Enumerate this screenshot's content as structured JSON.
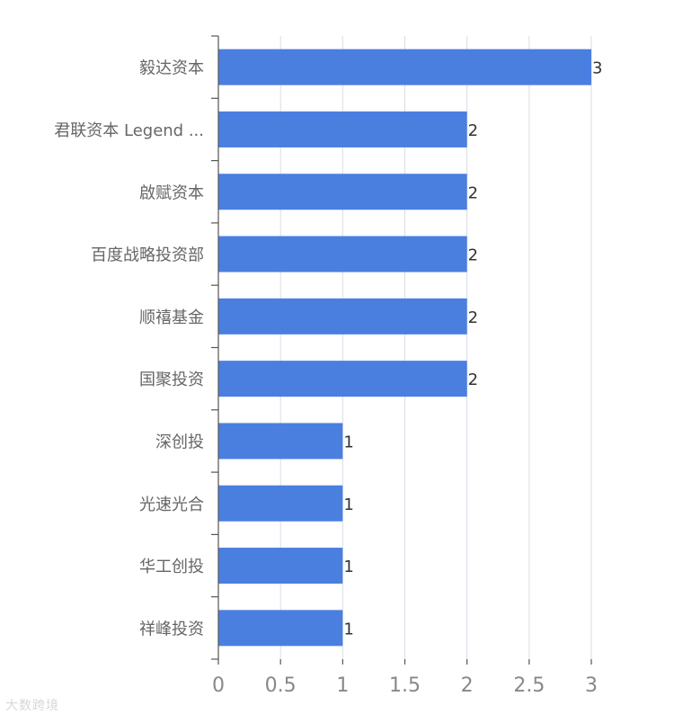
{
  "chart_data": {
    "type": "bar",
    "orientation": "horizontal",
    "categories": [
      "毅达资本",
      "君联资本 Legend ...",
      "啟赋资本",
      "百度战略投资部",
      "顺禧基金",
      "国聚投资",
      "深创投",
      "光速光合",
      "华工创投",
      "祥峰投资"
    ],
    "values": [
      3,
      2,
      2,
      2,
      2,
      2,
      1,
      1,
      1,
      1
    ],
    "xlim": [
      0,
      3
    ],
    "xticks": [
      "0",
      "0.5",
      "1",
      "1.5",
      "2",
      "2.5",
      "3"
    ],
    "grid": "vertical",
    "bar_color": "#4a7fe0",
    "data_labels": true
  },
  "watermark": {
    "text": "大数跨境"
  }
}
